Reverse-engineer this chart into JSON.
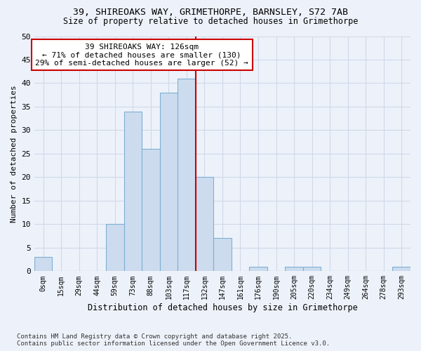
{
  "title1": "39, SHIREOAKS WAY, GRIMETHORPE, BARNSLEY, S72 7AB",
  "title2": "Size of property relative to detached houses in Grimethorpe",
  "xlabel": "Distribution of detached houses by size in Grimethorpe",
  "ylabel": "Number of detached properties",
  "bar_labels": [
    "0sqm",
    "15sqm",
    "29sqm",
    "44sqm",
    "59sqm",
    "73sqm",
    "88sqm",
    "103sqm",
    "117sqm",
    "132sqm",
    "147sqm",
    "161sqm",
    "176sqm",
    "190sqm",
    "205sqm",
    "220sqm",
    "234sqm",
    "249sqm",
    "264sqm",
    "278sqm",
    "293sqm"
  ],
  "bar_values": [
    3,
    0,
    0,
    0,
    10,
    34,
    26,
    38,
    41,
    20,
    7,
    0,
    1,
    0,
    1,
    1,
    0,
    0,
    0,
    0,
    1
  ],
  "bar_color": "#ccdcee",
  "bar_edge_color": "#7fafd4",
  "vline_x": 8.5,
  "vline_color": "#cc0000",
  "annotation_title": "39 SHIREOAKS WAY: 126sqm",
  "annotation_line1": "← 71% of detached houses are smaller (130)",
  "annotation_line2": "29% of semi-detached houses are larger (52) →",
  "annotation_box_color": "#ffffff",
  "annotation_box_edge": "#cc0000",
  "ylim": [
    0,
    50
  ],
  "yticks": [
    0,
    5,
    10,
    15,
    20,
    25,
    30,
    35,
    40,
    45,
    50
  ],
  "grid_color": "#d0d8e8",
  "bg_color": "#edf2fa",
  "footer1": "Contains HM Land Registry data © Crown copyright and database right 2025.",
  "footer2": "Contains public sector information licensed under the Open Government Licence v3.0."
}
